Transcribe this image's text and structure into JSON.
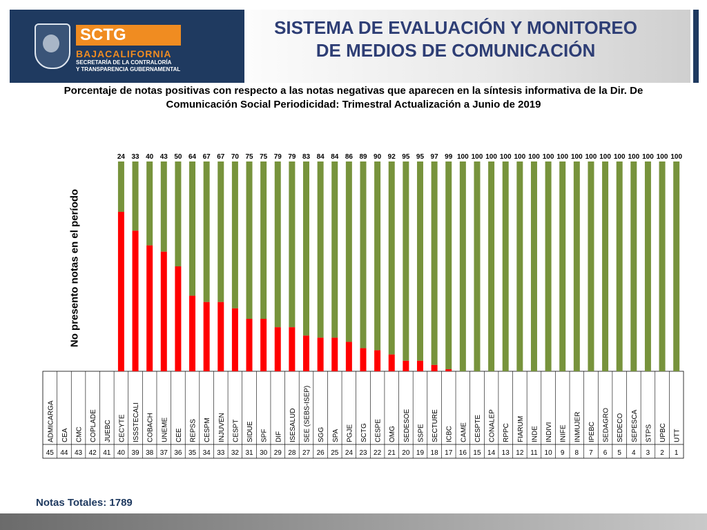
{
  "header": {
    "logo_text": "SCTG",
    "logo_bc": "BAJACALIFORNIA",
    "logo_sub1": "SECRETARÍA DE LA CONTRALORÍA",
    "logo_sub2": "Y TRANSPARENCIA GUBERNAMENTAL",
    "title_line1": "SISTEMA DE EVALUACIÓN Y MONITOREO",
    "title_line2": "DE MEDIOS DE COMUNICACIÓN"
  },
  "footer": {
    "notas_totales": "Notas Totales: 1789"
  },
  "colors": {
    "positive": "#77933c",
    "negative": "#ff0000",
    "navy": "#1f3a60",
    "orange": "#f08c21",
    "title": "#2e3e75"
  },
  "chart_data": {
    "type": "bar",
    "stacked": true,
    "title": "Porcentaje de notas  positivas  con respecto a las notas negativas que aparecen en la síntesis informativa de la Dir. De Comunicación Social  Periodicidad: Trimestral Actualización a Junio de 2019",
    "ylabel": "No presento notas en el período",
    "ylim": [
      0,
      100
    ],
    "categories": [
      "ADMICARGA",
      "CEA",
      "CMC",
      "COPLADE",
      "JUEBC",
      "CECYTE",
      "ISSSTECALI",
      "COBACH",
      "UNEME",
      "CEE",
      "REPSS",
      "CESPM",
      "INJUVEN",
      "CESPT",
      "SIDUE",
      "SPF",
      "DIF",
      "ISESALUD",
      "SEE (SEBS-ISEP)",
      "SGG",
      "SPA",
      "PGJE",
      "SCTG",
      "CESPE",
      "OMG",
      "SEDESOE",
      "SSPE",
      "SECTURE",
      "ICBC",
      "CAME",
      "CESPTE",
      "CONALEP",
      "RPPC",
      "FIARUM",
      "INDE",
      "INDIVI",
      "INIFE",
      "INMUJER",
      "IPEBC",
      "SEDAGRO",
      "SEDECO",
      "SEPESCA",
      "STPS",
      "UPBC",
      "UTT"
    ],
    "rank": [
      "45",
      "44",
      "43",
      "42",
      "41",
      "40",
      "39",
      "38",
      "37",
      "36",
      "35",
      "34",
      "33",
      "32",
      "31",
      "30",
      "29",
      "28",
      "27",
      "26",
      "25",
      "24",
      "23",
      "22",
      "21",
      "20",
      "19",
      "18",
      "17",
      "16",
      "15",
      "14",
      "13",
      "12",
      "11",
      "10",
      "9",
      "8",
      "7",
      "6",
      "5",
      "4",
      "3",
      "2",
      "1"
    ],
    "series": [
      {
        "values": [
          null,
          null,
          null,
          null,
          null,
          24,
          33,
          40,
          43,
          50,
          64,
          67,
          67,
          70,
          75,
          75,
          79,
          79,
          83,
          84,
          84,
          86,
          89,
          90,
          92,
          95,
          95,
          97,
          99,
          100,
          100,
          100,
          100,
          100,
          100,
          100,
          100,
          100,
          100,
          100,
          100,
          100,
          100,
          100,
          100
        ]
      },
      {
        "values": [
          null,
          null,
          null,
          null,
          null,
          76,
          67,
          60,
          57,
          50,
          36,
          33,
          33,
          30,
          25,
          25,
          21,
          21,
          17,
          16,
          16,
          14,
          11,
          10,
          8,
          5,
          5,
          3,
          1,
          0,
          0,
          0,
          0,
          0,
          0,
          0,
          0,
          0,
          0,
          0,
          0,
          0,
          0,
          0,
          0
        ]
      }
    ]
  }
}
